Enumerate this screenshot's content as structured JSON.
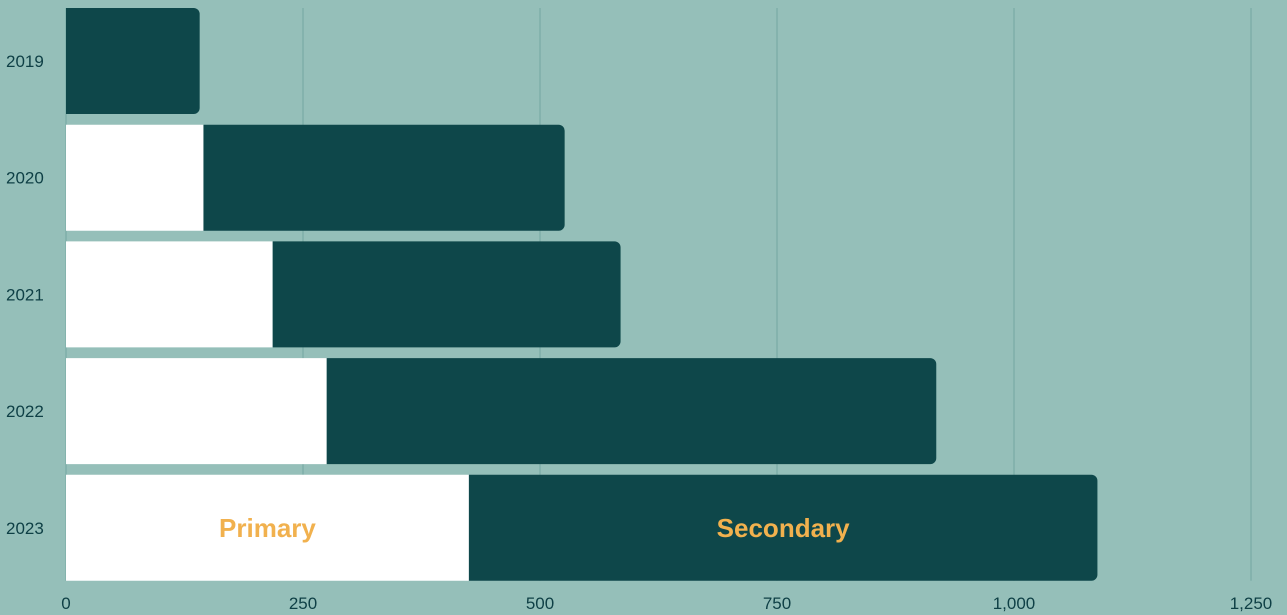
{
  "chart_data": {
    "type": "bar",
    "orientation": "horizontal",
    "stacked": true,
    "categories": [
      "2019",
      "2020",
      "2021",
      "2022",
      "2023"
    ],
    "series": [
      {
        "name": "Primary",
        "color": "#ffffff",
        "values": [
          0,
          145,
          218,
          275,
          425
        ]
      },
      {
        "name": "Secondary",
        "color": "#0e474a",
        "values": [
          141,
          381,
          367,
          643,
          663
        ]
      }
    ],
    "xlim": [
      0,
      1250
    ],
    "xticks": [
      "0",
      "250",
      "500",
      "750",
      "1,000",
      "1,250"
    ],
    "grid": true,
    "background": "#95bfb9",
    "gridline_color": "#7aaba5",
    "label_color": "#f1b14e",
    "text_color": "#0e3f45",
    "series_labels_shown_on": "2023"
  }
}
